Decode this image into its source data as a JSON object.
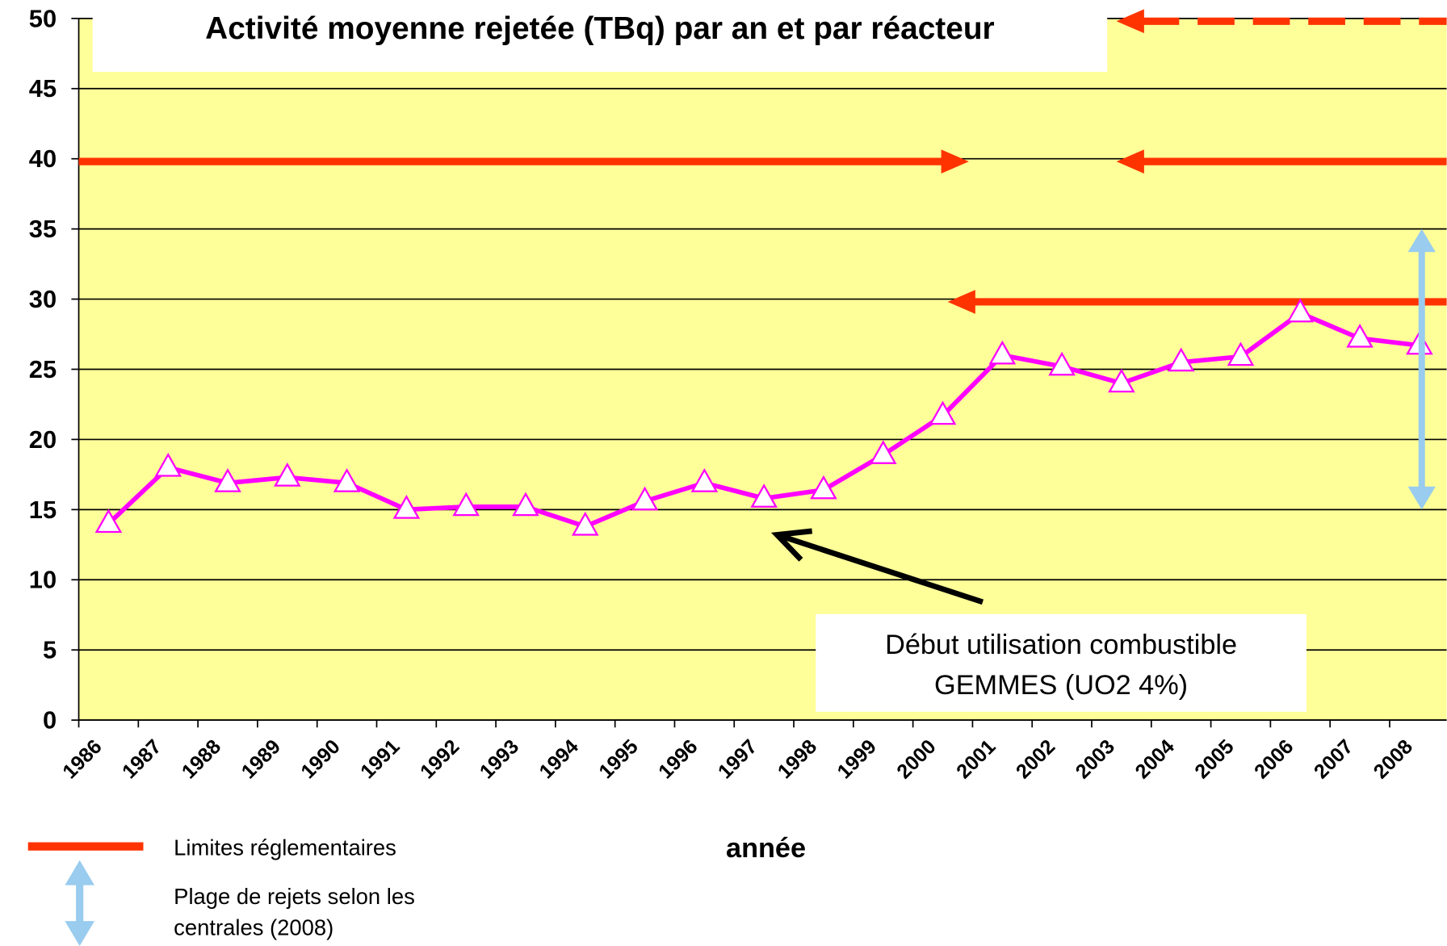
{
  "chart_data": {
    "type": "line",
    "title": "Activité moyenne rejetée (TBq) par an et par réacteur",
    "x_label": "année",
    "categories": [
      "1986",
      "1987",
      "1988",
      "1989",
      "1990",
      "1991",
      "1992",
      "1993",
      "1994",
      "1995",
      "1996",
      "1997",
      "1998",
      "1999",
      "2000",
      "2001",
      "2002",
      "2003",
      "2004",
      "2005",
      "2006",
      "2007",
      "2008"
    ],
    "series": [
      {
        "color": "#ff00ff",
        "marker_fill": "#ffffff",
        "values": [
          14.0,
          18.0,
          16.9,
          17.3,
          16.9,
          15.0,
          15.2,
          15.2,
          13.8,
          15.6,
          16.9,
          15.8,
          16.4,
          18.9,
          21.7,
          26.0,
          25.2,
          24.0,
          25.5,
          25.9,
          29.0,
          27.2,
          26.7
        ]
      }
    ],
    "ylim": [
      0,
      50
    ],
    "yticks": [
      0,
      5,
      10,
      15,
      20,
      25,
      30,
      35,
      40,
      45,
      50
    ],
    "grid": true,
    "background": "#ffff99",
    "limits": {
      "color": "#ff3300",
      "name": "Limites réglementaires",
      "lines": [
        {
          "value": 40
        },
        {
          "value": 40
        },
        {
          "value": 30
        },
        {
          "value": 50,
          "dashed": true
        }
      ]
    },
    "range": {
      "color": "#99ccee",
      "name": [
        "Plage de rejets selon les",
        "centrales (2008)"
      ],
      "values": [
        15,
        35
      ]
    },
    "annotation": [
      "Début utilisation combustible",
      "GEMMES (UO2 4%)"
    ]
  }
}
